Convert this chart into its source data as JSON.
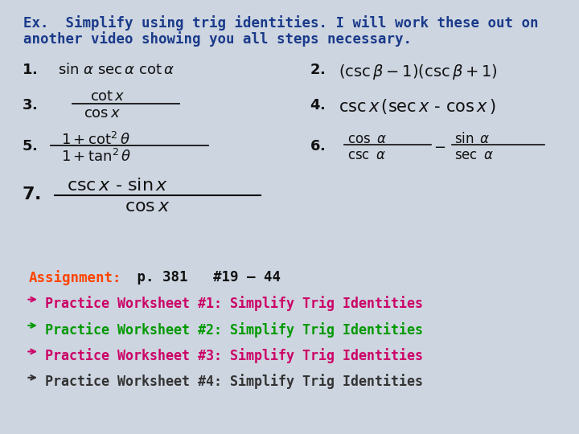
{
  "bg_color": "#cdd5e0",
  "title_line1": "Ex.  Simplify using trig identities. I will work these out on",
  "title_line2": "another video showing you all steps necessary.",
  "title_color": "#1a3a8a",
  "assignment_label": "Assignment:",
  "assignment_label_color": "#ff4400",
  "assignment_rest": " p. 381   #19 – 44",
  "assignment_rest_color": "#111111",
  "bullets": [
    "Practice Worksheet #1: Simplify Trig Identities",
    "Practice Worksheet #2: Simplify Trig Identities",
    "Practice Worksheet #3: Simplify Trig Identities",
    "Practice Worksheet #4: Simplify Trig Identities"
  ],
  "bullet_colors": [
    "#cc0066",
    "#009900",
    "#cc0066",
    "#333333"
  ]
}
